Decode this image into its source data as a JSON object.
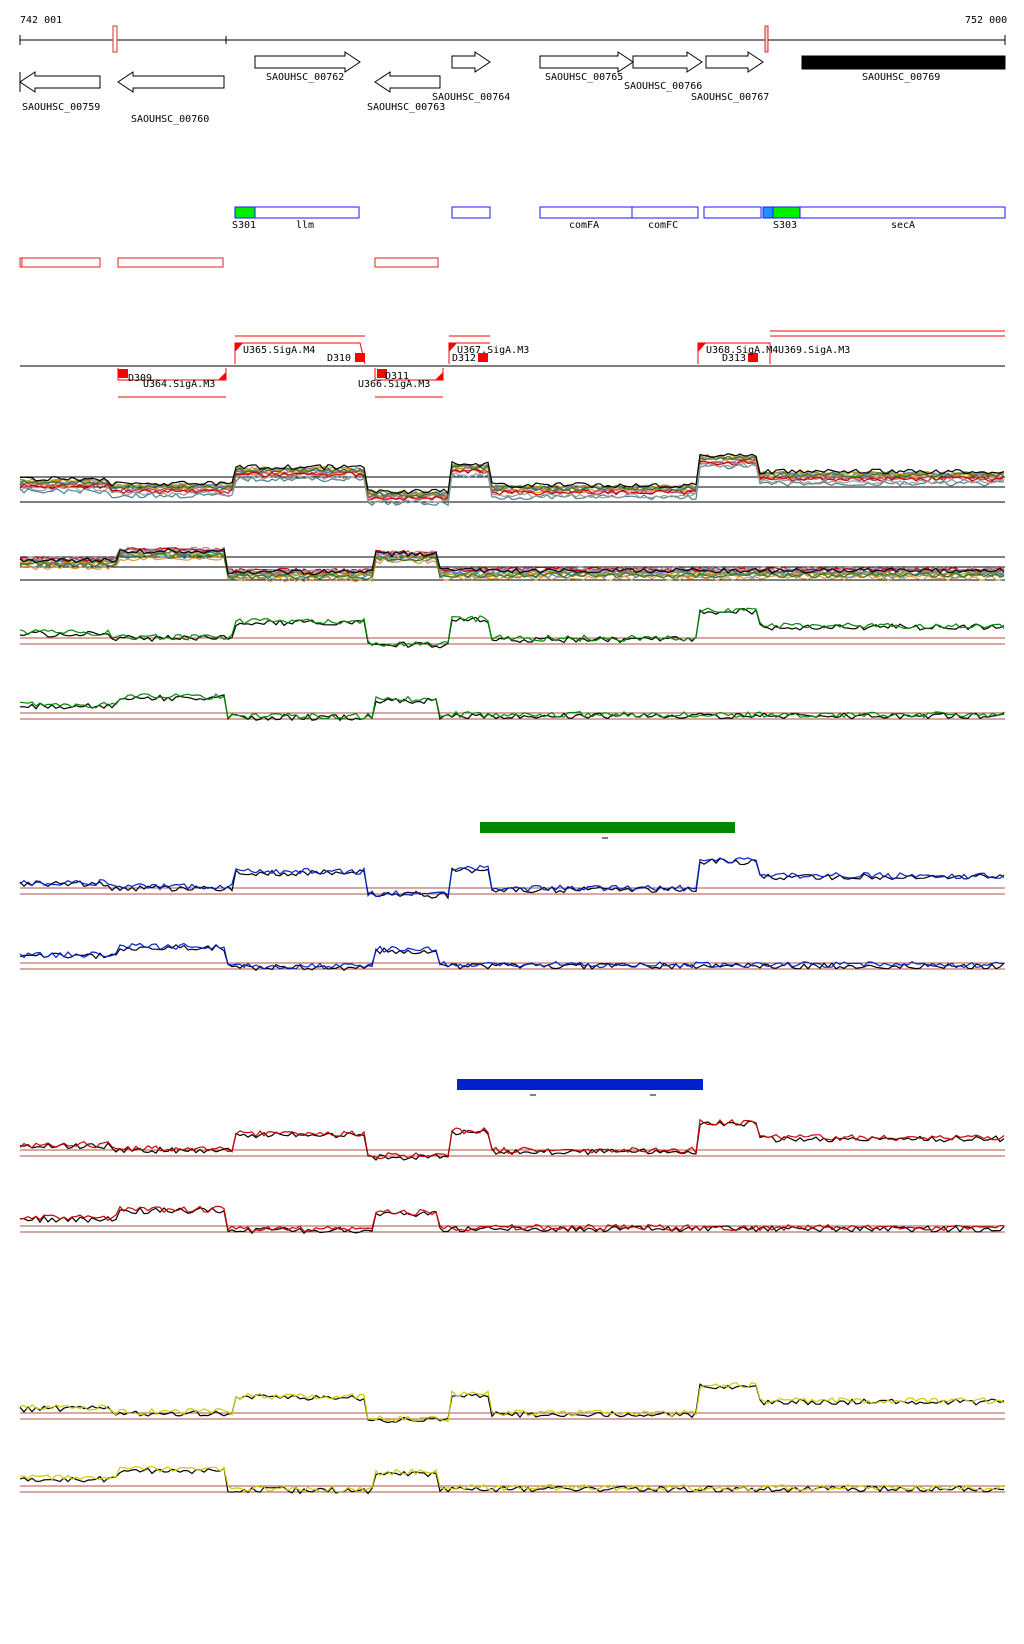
{
  "coords": {
    "start": "742 001",
    "end": "752 000"
  },
  "genes": [
    {
      "label": "SAOUHSC_00759",
      "strand": "-"
    },
    {
      "label": "SAOUHSC_00760",
      "strand": "-"
    },
    {
      "label": "SAOUHSC_00762",
      "strand": "+"
    },
    {
      "label": "SAOUHSC_00763",
      "strand": "-"
    },
    {
      "label": "SAOUHSC_00764",
      "strand": "+"
    },
    {
      "label": "SAOUHSC_00765",
      "strand": "+"
    },
    {
      "label": "SAOUHSC_00766",
      "strand": "+"
    },
    {
      "label": "SAOUHSC_00767",
      "strand": "+"
    },
    {
      "label": "SAOUHSC_00769",
      "strand": "+"
    }
  ],
  "features": [
    {
      "label": "S301"
    },
    {
      "label": "llm"
    },
    {
      "label": "comFA"
    },
    {
      "label": "comFC"
    },
    {
      "label": "S303"
    },
    {
      "label": "secA"
    }
  ],
  "segments": [
    {
      "label": "D309"
    },
    {
      "label": "U364.SigA.M3"
    },
    {
      "label": "U365.SigA.M4"
    },
    {
      "label": "D310"
    },
    {
      "label": "D311"
    },
    {
      "label": "U366.SigA.M3"
    },
    {
      "label": "U367.SigA.M3"
    },
    {
      "label": "D312"
    },
    {
      "label": "U368.SigA.M4"
    },
    {
      "label": "D313"
    },
    {
      "label": "U369.SigA.M3"
    }
  ],
  "colors": {
    "gene_outline": "#000000",
    "gene_filled": "#000000",
    "feature_blue": "#1a1aff",
    "feature_green": "#00ee00",
    "feature_lightblue": "#1e90ff",
    "segment_red": "#ff0000",
    "track_green": "#008800",
    "track_blue": "#0022cc",
    "track_red": "#cc0000",
    "track_yellow": "#cccc00",
    "baseline_brown": "#aa5544"
  }
}
